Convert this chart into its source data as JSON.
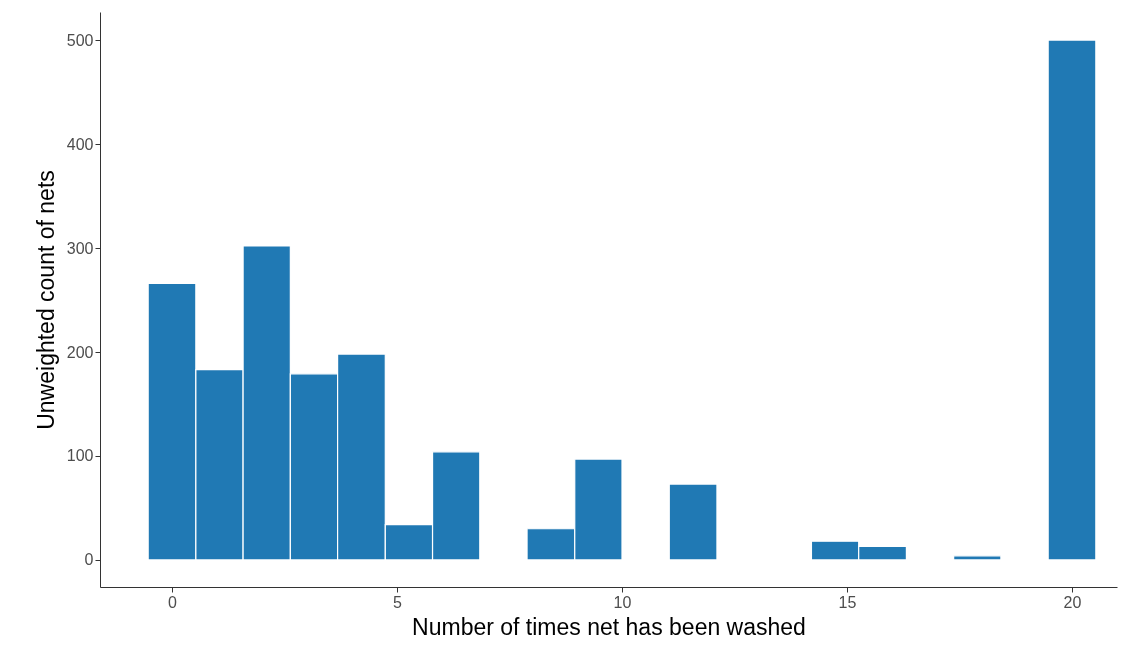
{
  "chart_data": {
    "type": "histogram",
    "xlabel": "Number of times net has been washed",
    "ylabel": "Unweighted count of nets",
    "bins": [
      -0.53,
      0.53,
      1.58,
      2.63,
      3.68,
      4.74,
      5.79,
      6.84,
      7.89,
      8.95,
      10,
      11.05,
      12.11,
      13.16,
      14.21,
      15.26,
      16.32,
      17.37,
      18.42,
      19.47,
      20.53
    ],
    "values": [
      266,
      183,
      302,
      179,
      198,
      34,
      104,
      0,
      30,
      97,
      0,
      73,
      0,
      0,
      18,
      13,
      0,
      4,
      0,
      500
    ],
    "color": "#2079b4",
    "xlim": [
      -1.6,
      21
    ],
    "xticks": [
      0,
      5,
      10,
      15,
      20
    ],
    "ylim": [
      -26,
      527
    ],
    "yticks": [
      0,
      100,
      200,
      300,
      400,
      500
    ],
    "grid": false
  }
}
